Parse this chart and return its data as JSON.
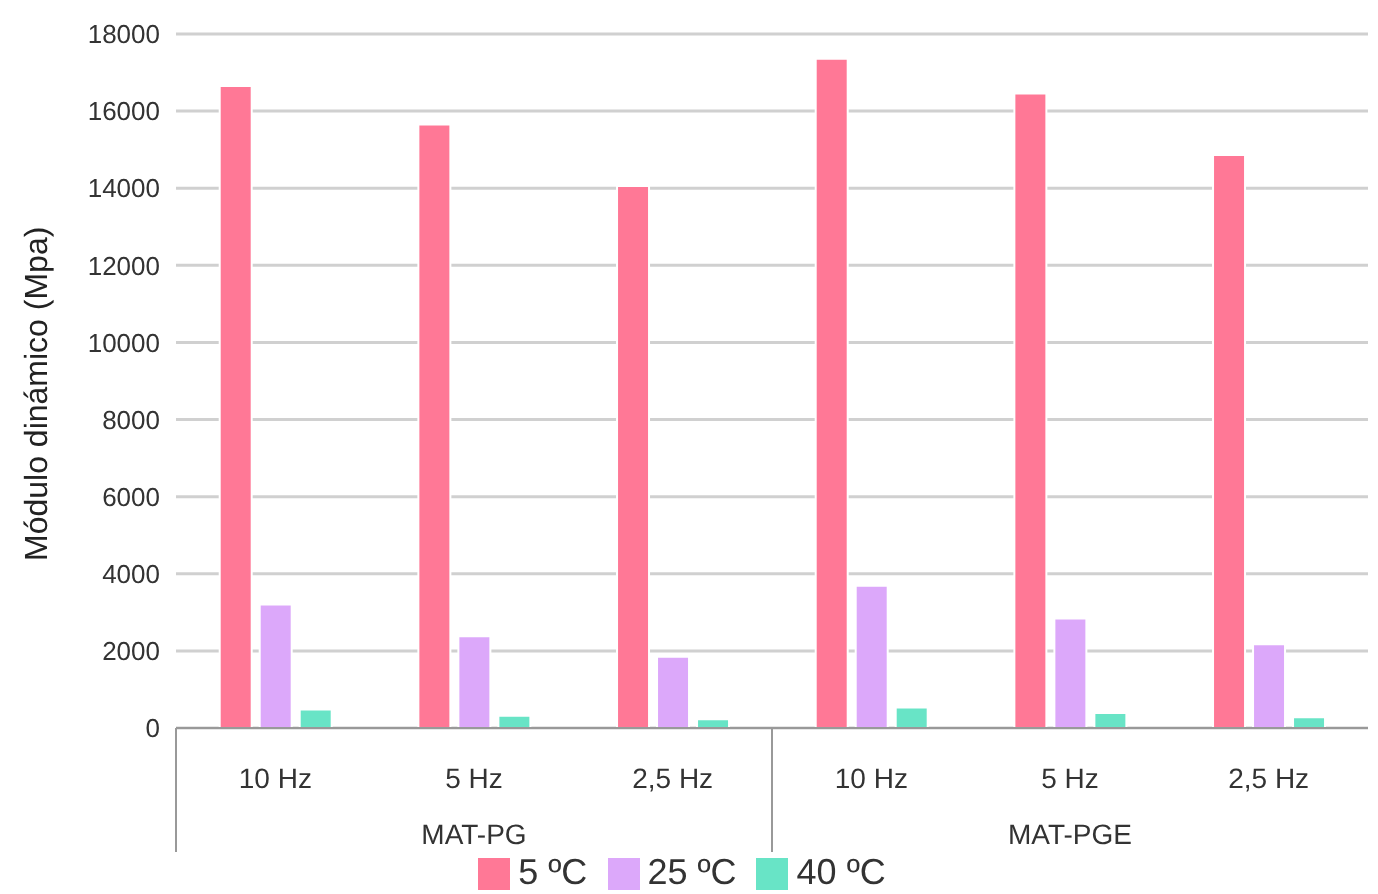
{
  "chart_data": {
    "type": "bar",
    "ylabel": "Módulo dinámico (Mpa)",
    "categories": [
      "10 Hz",
      "5 Hz",
      "2,5 Hz",
      "10 Hz",
      "5 Hz",
      "2,5 Hz"
    ],
    "annotations": [
      "MAT-PG",
      "MAT-PGE"
    ],
    "series": [
      {
        "name": "5 ºC",
        "color": "#ff7896",
        "values": [
          16650,
          15650,
          14060,
          17360,
          16460,
          14860
        ]
      },
      {
        "name": "25 ºC",
        "color": "#dca8fa",
        "values": [
          3200,
          2380,
          1850,
          3690,
          2840,
          2170
        ]
      },
      {
        "name": "40 ºC",
        "color": "#68e4c6",
        "values": [
          480,
          320,
          230,
          530,
          390,
          280
        ]
      }
    ],
    "ylim": [
      0,
      18000
    ],
    "yticks": [
      0,
      2000,
      4000,
      6000,
      8000,
      10000,
      12000,
      14000,
      16000,
      18000
    ],
    "grid": "y",
    "legend": "bottom"
  }
}
